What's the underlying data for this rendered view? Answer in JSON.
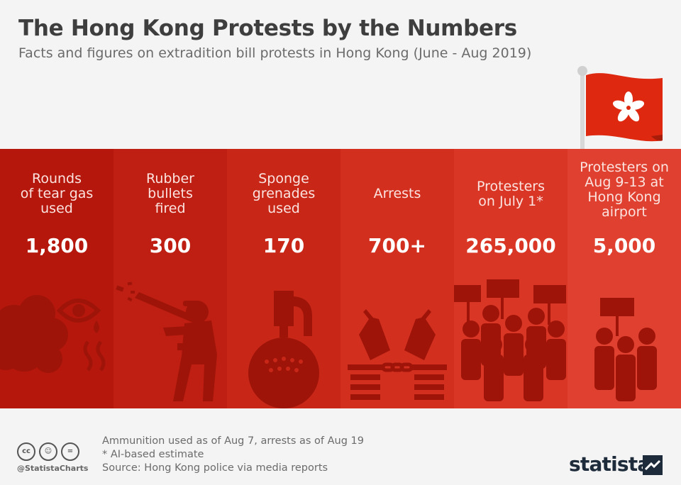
{
  "header": {
    "title": "The Hong Kong Protests by the Numbers",
    "subtitle": "Facts and figures on extradition bill protests in Hong Kong (June - Aug 2019)"
  },
  "chart_data": {
    "type": "table",
    "title": "The Hong Kong Protests by the Numbers",
    "subtitle": "Facts and figures on extradition bill protests in Hong Kong (June - Aug 2019)",
    "categories": [
      "Rounds of tear gas used",
      "Rubber bullets fired",
      "Sponge grenades used",
      "Arrests",
      "Protesters on July 1*",
      "Protesters on Aug 9-13 at Hong Kong airport"
    ],
    "values": [
      1800,
      300,
      170,
      700,
      265000,
      5000
    ],
    "display_values": [
      "1,800",
      "300",
      "170",
      "700+",
      "265,000",
      "5,000"
    ]
  },
  "panels": [
    {
      "label": "Rounds\nof tear gas\nused",
      "value": "1,800",
      "icon": "tear-gas-icon",
      "color": "#b5170c"
    },
    {
      "label": "Rubber\nbullets\nfired",
      "value": "300",
      "icon": "rubber-bullet-shooter-icon",
      "color": "#bf1f12"
    },
    {
      "label": "Sponge\ngrenades\nused",
      "value": "170",
      "icon": "sponge-grenade-icon",
      "color": "#c82718"
    },
    {
      "label": "Arrests",
      "value": "700+",
      "icon": "handcuffs-icon",
      "color": "#d22f1f"
    },
    {
      "label": "Protesters\non July 1*",
      "value": "265,000",
      "icon": "large-crowd-icon",
      "color": "#d93626"
    },
    {
      "label": "Protesters on\nAug 9-13 at\nHong Kong\nairport",
      "value": "5,000",
      "icon": "small-crowd-icon",
      "color": "#e0402f"
    }
  ],
  "footer": {
    "notes": [
      "Ammunition used as of Aug 7, arrests as of Aug 19",
      "* AI-based estimate",
      "Source: Hong Kong police via media reports"
    ],
    "handle": "@StatistaCharts",
    "brand": "statista",
    "license_icons": [
      "creative-commons-icon",
      "attribution-icon",
      "no-derivatives-icon"
    ]
  },
  "colors": {
    "icon": "#9e1409",
    "text_dark": "#3e3e3e",
    "flag": "#de2910"
  }
}
